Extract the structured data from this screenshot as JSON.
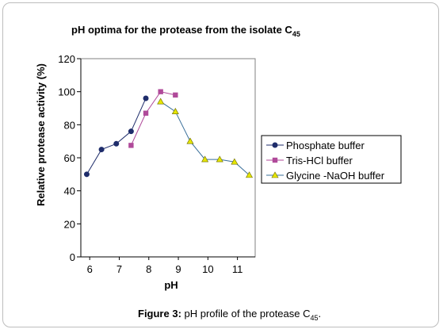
{
  "chart_data": {
    "type": "line",
    "title": "pH optima for the protease from the isolate C",
    "title_subscript": "45",
    "xlabel": "pH",
    "ylabel": "Relative protease activity (%)",
    "xlim": [
      5.7,
      11.6
    ],
    "ylim": [
      0,
      120
    ],
    "x_ticks": [
      6,
      7,
      8,
      9,
      10,
      11
    ],
    "y_ticks": [
      0,
      20,
      40,
      60,
      80,
      100,
      120
    ],
    "grid": false,
    "legend_position": "right",
    "series": [
      {
        "name": "Phosphate buffer",
        "color": "#1f2d6b",
        "marker": "circle",
        "x": [
          5.9,
          6.4,
          6.9,
          7.4,
          7.9
        ],
        "y": [
          50,
          65,
          68.5,
          76,
          96
        ]
      },
      {
        "name": "Tris-HCl buffer",
        "color": "#b04a9a",
        "marker": "square",
        "x": [
          7.4,
          7.9,
          8.4,
          8.9
        ],
        "y": [
          67.5,
          87,
          100,
          98
        ]
      },
      {
        "name": "Glycine -NaOH buffer",
        "color": "#3a6f9a",
        "marker_color": "#e6e600",
        "marker": "triangle",
        "x": [
          8.4,
          8.9,
          9.4,
          9.9,
          10.4,
          10.9,
          11.4
        ],
        "y": [
          94,
          88,
          70,
          59,
          59,
          57.5,
          49.5
        ]
      }
    ]
  },
  "caption": {
    "label": "Figure 3:",
    "text": " pH profile of the protease C",
    "subscript": "45",
    "suffix": "."
  }
}
